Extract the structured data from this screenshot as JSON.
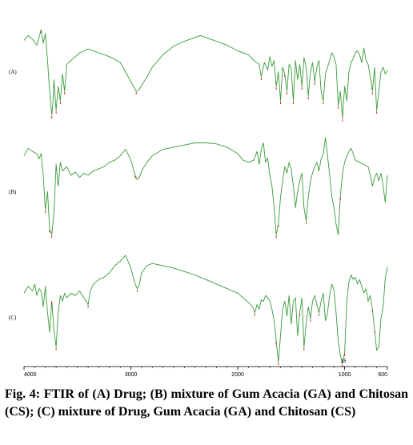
{
  "chart_data": {
    "type": "line",
    "xlim": [
      4000,
      600
    ],
    "x_ticks": [
      4000,
      3000,
      2000,
      1000,
      600
    ],
    "x_tick_labels": [
      "4000",
      "3000",
      "2000",
      "1000",
      "600"
    ],
    "line_color": "#3a9a3a",
    "peak_marker_color": "#d02020",
    "series": [
      {
        "name": "(A)",
        "x": [
          4000,
          3960,
          3920,
          3880,
          3860,
          3840,
          3820,
          3800,
          3780,
          3760,
          3740,
          3730,
          3720,
          3700,
          3680,
          3660,
          3640,
          3620,
          3600,
          3560,
          3520,
          3480,
          3440,
          3400,
          3300,
          3200,
          3100,
          3000,
          2950,
          2920,
          2900,
          2850,
          2800,
          2700,
          2600,
          2500,
          2400,
          2350,
          2300,
          2250,
          2200,
          2100,
          2000,
          1900,
          1850,
          1800,
          1780,
          1750,
          1720,
          1700,
          1680,
          1660,
          1640,
          1620,
          1600,
          1580,
          1560,
          1540,
          1520,
          1500,
          1480,
          1460,
          1440,
          1420,
          1400,
          1380,
          1360,
          1340,
          1320,
          1300,
          1280,
          1260,
          1240,
          1220,
          1200,
          1180,
          1160,
          1140,
          1120,
          1100,
          1080,
          1060,
          1040,
          1020,
          1000,
          980,
          960,
          940,
          920,
          900,
          880,
          860,
          840,
          820,
          800,
          780,
          760,
          740,
          720,
          700,
          680,
          660,
          640,
          620,
          600
        ],
        "y": [
          0.83,
          0.88,
          0.84,
          0.78,
          0.86,
          0.94,
          0.8,
          0.9,
          0.62,
          0.3,
          0.05,
          0.18,
          0.42,
          0.1,
          0.35,
          0.2,
          0.48,
          0.3,
          0.58,
          0.62,
          0.66,
          0.7,
          0.72,
          0.74,
          0.7,
          0.66,
          0.6,
          0.4,
          0.3,
          0.32,
          0.36,
          0.45,
          0.55,
          0.68,
          0.77,
          0.82,
          0.86,
          0.88,
          0.86,
          0.84,
          0.82,
          0.78,
          0.72,
          0.68,
          0.62,
          0.58,
          0.45,
          0.6,
          0.52,
          0.66,
          0.56,
          0.62,
          0.35,
          0.5,
          0.2,
          0.55,
          0.48,
          0.3,
          0.58,
          0.54,
          0.2,
          0.62,
          0.42,
          0.58,
          0.35,
          0.65,
          0.55,
          0.25,
          0.5,
          0.6,
          0.4,
          0.55,
          0.62,
          0.3,
          0.2,
          0.48,
          0.55,
          0.62,
          0.7,
          0.66,
          0.58,
          0.15,
          0.3,
          0.02,
          0.35,
          0.2,
          0.5,
          0.6,
          0.64,
          0.7,
          0.72,
          0.68,
          0.6,
          0.75,
          0.62,
          0.58,
          0.45,
          0.3,
          0.55,
          0.1,
          0.3,
          0.5,
          0.55,
          0.48,
          0.52
        ]
      },
      {
        "name": "(B)",
        "x": [
          4000,
          3960,
          3920,
          3880,
          3860,
          3840,
          3820,
          3800,
          3780,
          3760,
          3740,
          3720,
          3700,
          3680,
          3660,
          3640,
          3600,
          3560,
          3520,
          3480,
          3440,
          3400,
          3350,
          3300,
          3250,
          3200,
          3150,
          3100,
          3050,
          3000,
          2960,
          2940,
          2920,
          2900,
          2850,
          2800,
          2700,
          2600,
          2500,
          2400,
          2300,
          2200,
          2100,
          2000,
          1950,
          1900,
          1850,
          1820,
          1800,
          1780,
          1760,
          1740,
          1720,
          1700,
          1680,
          1660,
          1640,
          1620,
          1600,
          1580,
          1560,
          1540,
          1520,
          1500,
          1480,
          1460,
          1440,
          1420,
          1400,
          1380,
          1360,
          1340,
          1320,
          1300,
          1280,
          1260,
          1240,
          1220,
          1200,
          1180,
          1160,
          1140,
          1120,
          1100,
          1080,
          1060,
          1040,
          1020,
          1000,
          980,
          960,
          940,
          920,
          900,
          860,
          820,
          780,
          760,
          740,
          720,
          700,
          680,
          660,
          640,
          620,
          600
        ],
        "y": [
          0.78,
          0.85,
          0.82,
          0.8,
          0.75,
          0.8,
          0.6,
          0.28,
          0.45,
          0.1,
          0.05,
          0.25,
          0.7,
          0.5,
          0.72,
          0.64,
          0.68,
          0.6,
          0.63,
          0.58,
          0.62,
          0.6,
          0.64,
          0.66,
          0.68,
          0.72,
          0.74,
          0.78,
          0.84,
          0.74,
          0.6,
          0.56,
          0.58,
          0.64,
          0.72,
          0.78,
          0.84,
          0.86,
          0.88,
          0.9,
          0.9,
          0.89,
          0.86,
          0.8,
          0.74,
          0.72,
          0.74,
          0.82,
          0.7,
          0.84,
          0.9,
          0.72,
          0.76,
          0.6,
          0.5,
          0.3,
          0.05,
          0.15,
          0.4,
          0.55,
          0.68,
          0.62,
          0.72,
          0.66,
          0.5,
          0.3,
          0.45,
          0.55,
          0.62,
          0.3,
          0.18,
          0.4,
          0.55,
          0.62,
          0.68,
          0.72,
          0.64,
          0.75,
          0.8,
          0.95,
          0.78,
          0.6,
          0.4,
          0.3,
          0.15,
          0.05,
          0.4,
          0.62,
          0.72,
          0.78,
          0.82,
          0.85,
          0.8,
          0.74,
          0.72,
          0.7,
          0.68,
          0.6,
          0.5,
          0.58,
          0.62,
          0.55,
          0.62,
          0.5,
          0.35,
          0.6
        ]
      },
      {
        "name": "(C)",
        "x": [
          4000,
          3960,
          3920,
          3900,
          3880,
          3860,
          3840,
          3820,
          3800,
          3780,
          3760,
          3740,
          3720,
          3700,
          3680,
          3660,
          3640,
          3620,
          3600,
          3560,
          3520,
          3480,
          3440,
          3400,
          3380,
          3350,
          3300,
          3250,
          3200,
          3150,
          3100,
          3050,
          3000,
          2960,
          2940,
          2920,
          2900,
          2850,
          2800,
          2700,
          2600,
          2500,
          2400,
          2300,
          2200,
          2100,
          2000,
          1950,
          1900,
          1860,
          1840,
          1820,
          1800,
          1780,
          1760,
          1740,
          1720,
          1700,
          1680,
          1660,
          1640,
          1620,
          1600,
          1580,
          1560,
          1540,
          1520,
          1500,
          1480,
          1460,
          1440,
          1420,
          1400,
          1380,
          1360,
          1340,
          1320,
          1300,
          1280,
          1260,
          1240,
          1220,
          1200,
          1180,
          1160,
          1140,
          1120,
          1100,
          1080,
          1060,
          1040,
          1020,
          1000,
          980,
          960,
          940,
          920,
          900,
          880,
          860,
          840,
          820,
          800,
          780,
          760,
          740,
          720,
          700,
          680,
          660,
          640,
          620,
          600
        ],
        "y": [
          0.62,
          0.68,
          0.64,
          0.7,
          0.6,
          0.66,
          0.64,
          0.5,
          0.68,
          0.45,
          0.28,
          0.55,
          0.3,
          0.15,
          0.45,
          0.6,
          0.55,
          0.62,
          0.58,
          0.62,
          0.6,
          0.64,
          0.58,
          0.52,
          0.64,
          0.7,
          0.74,
          0.76,
          0.8,
          0.86,
          0.9,
          0.95,
          0.84,
          0.7,
          0.66,
          0.7,
          0.8,
          0.86,
          0.88,
          0.86,
          0.84,
          0.81,
          0.78,
          0.74,
          0.7,
          0.66,
          0.62,
          0.58,
          0.54,
          0.5,
          0.45,
          0.52,
          0.48,
          0.56,
          0.55,
          0.6,
          0.58,
          0.55,
          0.48,
          0.38,
          0.2,
          0.02,
          0.25,
          0.48,
          0.55,
          0.42,
          0.6,
          0.35,
          0.55,
          0.58,
          0.25,
          0.45,
          0.58,
          0.15,
          0.35,
          0.5,
          0.4,
          0.55,
          0.6,
          0.52,
          0.45,
          0.55,
          0.62,
          0.38,
          0.45,
          0.6,
          0.7,
          0.65,
          0.45,
          0.2,
          0.08,
          0.0,
          0.1,
          0.55,
          0.72,
          0.78,
          0.74,
          0.76,
          0.7,
          0.74,
          0.68,
          0.62,
          0.66,
          0.55,
          0.6,
          0.48,
          0.3,
          0.12,
          0.15,
          0.4,
          0.5,
          0.75,
          0.85
        ]
      }
    ],
    "peak_markers": [
      {
        "series": 0,
        "x": [
          3840,
          3740,
          3700,
          3660,
          3620,
          2950,
          1780,
          1640,
          1600,
          1560,
          1540,
          1480,
          1400,
          1340,
          1280,
          1200,
          1060,
          1020,
          740,
          700
        ]
      },
      {
        "series": 1,
        "x": [
          3800,
          3760,
          3740,
          2960,
          1640,
          1620,
          1360,
          1040
        ]
      },
      {
        "series": 2,
        "x": [
          3740,
          3700,
          3400,
          2940,
          1840,
          1640,
          1620,
          1420,
          1380,
          1320,
          1240,
          1020,
          1000,
          740,
          720
        ]
      }
    ],
    "annotations": [
      {
        "series": 2,
        "x": 1020,
        "text": "15"
      }
    ]
  },
  "panels": [
    {
      "label": "(A)"
    },
    {
      "label": "(B)"
    },
    {
      "label": "(C)"
    }
  ],
  "caption": "Fig. 4: FTIR of (A) Drug; (B) mixture of Gum Acacia (GA) and Chitosan (CS); (C) mixture of Drug, Gum Acacia (GA) and Chitosan (CS)"
}
